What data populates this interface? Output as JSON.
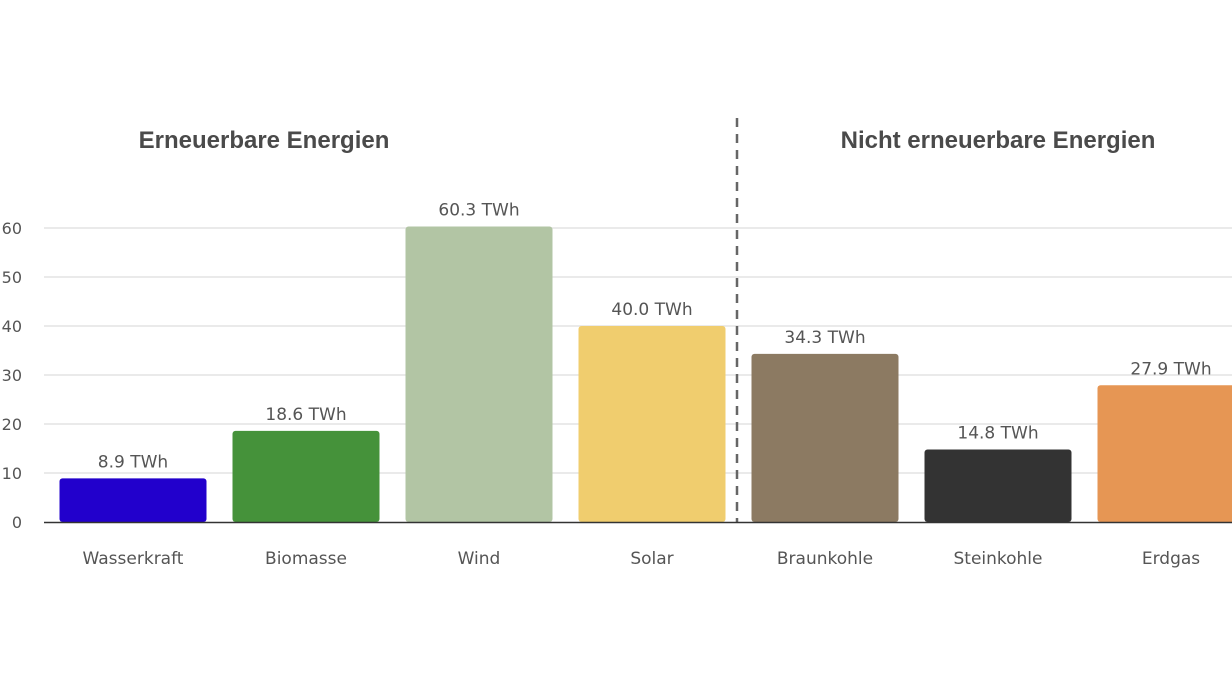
{
  "chart_data": {
    "type": "bar",
    "categories": [
      "Wasserkraft",
      "Biomasse",
      "Wind",
      "Solar",
      "Braunkohle",
      "Steinkohle",
      "Erdgas"
    ],
    "values": [
      8.9,
      18.6,
      60.3,
      40.0,
      34.3,
      14.8,
      27.9
    ],
    "data_labels": [
      "8.9 TWh",
      "18.6 TWh",
      "60.3 TWh",
      "40.0 TWh",
      "34.3 TWh",
      "14.8 TWh",
      "27.9 TWh"
    ],
    "colors": [
      "#2200cc",
      "#45923a",
      "#b2c5a4",
      "#f0cd6e",
      "#8c7a62",
      "#333333",
      "#e69654"
    ],
    "groups": [
      {
        "title": "Erneuerbare Energien",
        "categories": [
          "Wasserkraft",
          "Biomasse",
          "Wind",
          "Solar"
        ]
      },
      {
        "title": "Nicht erneuerbare Energien",
        "categories": [
          "Braunkohle",
          "Steinkohle",
          "Erdgas"
        ]
      }
    ],
    "yticks": [
      0,
      10,
      20,
      30,
      40,
      50,
      60
    ],
    "ylim": [
      0,
      60
    ],
    "grid": true,
    "xlabel": "",
    "ylabel": ""
  }
}
